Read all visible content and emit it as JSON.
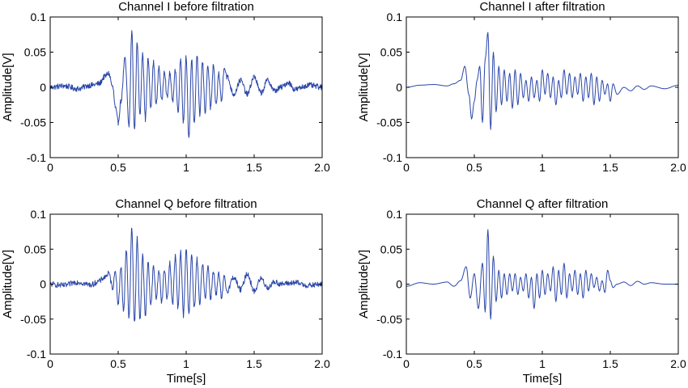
{
  "chart_data": [
    {
      "type": "line",
      "title": "Channel I before filtration",
      "xlabel": "",
      "ylabel": "Amplitude[V]",
      "xlim": [
        0,
        2.0
      ],
      "ylim": [
        -0.1,
        0.1
      ],
      "xticks": [
        "0",
        "0.5",
        "1",
        "1.5",
        "2.0"
      ],
      "yticks": [
        "0.1",
        "0.05",
        "0",
        "-0.05",
        "-0.1"
      ],
      "grid": false,
      "color": "#2a46a8",
      "series": [
        {
          "noise": 0.004,
          "x": [
            0,
            0.1,
            0.2,
            0.3,
            0.36,
            0.4,
            0.43,
            0.46,
            0.48,
            0.5,
            0.52,
            0.55,
            0.58,
            0.6,
            0.62,
            0.64,
            0.66,
            0.68,
            0.7,
            0.72,
            0.74,
            0.76,
            0.78,
            0.8,
            0.82,
            0.84,
            0.86,
            0.88,
            0.9,
            0.92,
            0.94,
            0.96,
            0.98,
            1.0,
            1.02,
            1.04,
            1.06,
            1.08,
            1.1,
            1.12,
            1.14,
            1.16,
            1.18,
            1.2,
            1.22,
            1.24,
            1.26,
            1.28,
            1.3,
            1.35,
            1.4,
            1.45,
            1.5,
            1.55,
            1.6,
            1.65,
            1.7,
            1.75,
            1.8,
            1.9,
            2.0
          ],
          "y": [
            0.0,
            0.002,
            -0.002,
            0.003,
            0.005,
            0.015,
            0.02,
            0.0,
            -0.03,
            -0.05,
            -0.02,
            0.04,
            -0.055,
            0.08,
            -0.06,
            0.065,
            -0.04,
            0.05,
            -0.045,
            0.04,
            -0.03,
            0.035,
            -0.025,
            0.03,
            -0.02,
            0.025,
            -0.015,
            0.02,
            -0.02,
            0.025,
            -0.035,
            0.04,
            -0.05,
            0.045,
            -0.075,
            0.04,
            -0.05,
            0.045,
            -0.04,
            0.035,
            -0.035,
            0.03,
            -0.03,
            0.03,
            -0.025,
            0.02,
            -0.02,
            0.03,
            0.015,
            -0.01,
            0.01,
            -0.01,
            0.015,
            -0.008,
            0.01,
            -0.005,
            0.0,
            0.007,
            -0.003,
            0.003,
            0.0
          ]
        }
      ]
    },
    {
      "type": "line",
      "title": "Channel I after filtration",
      "xlabel": "",
      "ylabel": "Amplitude[V]",
      "xlim": [
        0,
        2.0
      ],
      "ylim": [
        -0.1,
        0.1
      ],
      "xticks": [
        "0",
        "0.5",
        "1",
        "1.5",
        "2.0"
      ],
      "yticks": [
        "0.1",
        "0.05",
        "0",
        "-0.05",
        "-0.1"
      ],
      "grid": false,
      "color": "#2a46a8",
      "series": [
        {
          "noise": 0,
          "x": [
            0,
            0.1,
            0.2,
            0.3,
            0.35,
            0.4,
            0.43,
            0.46,
            0.48,
            0.5,
            0.52,
            0.54,
            0.56,
            0.58,
            0.6,
            0.62,
            0.64,
            0.66,
            0.68,
            0.7,
            0.72,
            0.74,
            0.76,
            0.78,
            0.8,
            0.82,
            0.84,
            0.86,
            0.88,
            0.9,
            0.92,
            0.94,
            0.96,
            0.98,
            1.0,
            1.02,
            1.04,
            1.06,
            1.08,
            1.1,
            1.12,
            1.14,
            1.16,
            1.18,
            1.2,
            1.22,
            1.24,
            1.26,
            1.28,
            1.3,
            1.32,
            1.34,
            1.36,
            1.38,
            1.4,
            1.42,
            1.44,
            1.46,
            1.48,
            1.5,
            1.52,
            1.55,
            1.6,
            1.65,
            1.7,
            1.75,
            1.8,
            1.9,
            2.0
          ],
          "y": [
            0.0,
            0.003,
            0.004,
            0.002,
            0.005,
            0.01,
            0.03,
            -0.01,
            -0.045,
            -0.02,
            0.01,
            0.03,
            -0.05,
            0.04,
            0.078,
            -0.06,
            0.05,
            -0.035,
            0.03,
            -0.025,
            0.025,
            -0.02,
            0.02,
            -0.03,
            0.025,
            -0.025,
            0.02,
            -0.015,
            0.01,
            -0.02,
            0.015,
            -0.015,
            0.01,
            -0.02,
            0.025,
            -0.01,
            0.02,
            -0.015,
            0.015,
            -0.025,
            0.01,
            -0.015,
            0.025,
            -0.01,
            0.02,
            -0.015,
            0.015,
            -0.01,
            0.02,
            -0.02,
            0.015,
            -0.015,
            0.02,
            -0.025,
            0.015,
            -0.02,
            0.01,
            -0.01,
            0.005,
            -0.02,
            0.005,
            -0.01,
            0.0,
            -0.005,
            0.002,
            -0.003,
            0.002,
            -0.002,
            0.003
          ]
        }
      ]
    },
    {
      "type": "line",
      "title": "Channel Q before filtration",
      "xlabel": "Time[s]",
      "ylabel": "Amplitude[V]",
      "xlim": [
        0,
        2.0
      ],
      "ylim": [
        -0.1,
        0.1
      ],
      "xticks": [
        "0",
        "0.5",
        "1",
        "1.5",
        "2.0"
      ],
      "yticks": [
        "0.1",
        "0.05",
        "0",
        "-0.05",
        "-0.1"
      ],
      "grid": false,
      "color": "#2a46a8",
      "series": [
        {
          "noise": 0.004,
          "x": [
            0,
            0.1,
            0.2,
            0.3,
            0.36,
            0.4,
            0.43,
            0.46,
            0.48,
            0.5,
            0.52,
            0.54,
            0.56,
            0.58,
            0.6,
            0.62,
            0.64,
            0.66,
            0.68,
            0.7,
            0.72,
            0.74,
            0.76,
            0.78,
            0.8,
            0.82,
            0.84,
            0.86,
            0.88,
            0.9,
            0.92,
            0.94,
            0.96,
            0.98,
            1.0,
            1.02,
            1.04,
            1.06,
            1.08,
            1.1,
            1.12,
            1.14,
            1.16,
            1.18,
            1.2,
            1.22,
            1.24,
            1.26,
            1.28,
            1.3,
            1.35,
            1.4,
            1.45,
            1.5,
            1.55,
            1.6,
            1.65,
            1.7,
            1.8,
            1.9,
            2.0
          ],
          "y": [
            0.0,
            -0.002,
            0.003,
            -0.001,
            0.004,
            0.01,
            0.015,
            -0.005,
            0.02,
            -0.03,
            0.025,
            -0.04,
            0.05,
            -0.05,
            0.08,
            -0.055,
            0.065,
            -0.05,
            0.04,
            -0.045,
            0.03,
            -0.03,
            0.025,
            -0.02,
            0.02,
            -0.025,
            0.02,
            -0.02,
            0.03,
            -0.03,
            0.04,
            -0.035,
            0.045,
            -0.045,
            0.05,
            -0.04,
            0.04,
            -0.035,
            0.035,
            -0.03,
            0.03,
            -0.02,
            0.025,
            -0.02,
            0.02,
            -0.015,
            0.015,
            -0.02,
            0.01,
            -0.01,
            0.01,
            -0.008,
            0.015,
            -0.01,
            0.008,
            -0.005,
            0.003,
            0.0,
            0.002,
            -0.002,
            0.0
          ]
        }
      ]
    },
    {
      "type": "line",
      "title": "Channel Q after filtration",
      "xlabel": "Time[s]",
      "ylabel": "Amplitude[V]",
      "xlim": [
        0,
        2.0
      ],
      "ylim": [
        -0.1,
        0.1
      ],
      "xticks": [
        "0",
        "0.5",
        "1",
        "1.5",
        "2.0"
      ],
      "yticks": [
        "0.1",
        "0.05",
        "0",
        "-0.05",
        "-0.1"
      ],
      "grid": false,
      "color": "#2a46a8",
      "series": [
        {
          "noise": 0,
          "x": [
            0,
            0.1,
            0.2,
            0.3,
            0.35,
            0.4,
            0.44,
            0.47,
            0.5,
            0.53,
            0.56,
            0.58,
            0.6,
            0.62,
            0.64,
            0.66,
            0.68,
            0.7,
            0.72,
            0.74,
            0.76,
            0.78,
            0.8,
            0.82,
            0.84,
            0.86,
            0.88,
            0.9,
            0.92,
            0.94,
            0.96,
            0.98,
            1.0,
            1.02,
            1.04,
            1.06,
            1.08,
            1.1,
            1.12,
            1.14,
            1.16,
            1.18,
            1.2,
            1.22,
            1.24,
            1.26,
            1.28,
            1.3,
            1.32,
            1.34,
            1.36,
            1.38,
            1.4,
            1.42,
            1.44,
            1.46,
            1.48,
            1.5,
            1.52,
            1.55,
            1.6,
            1.65,
            1.7,
            1.75,
            1.8,
            1.9,
            2.0
          ],
          "y": [
            -0.003,
            0.002,
            0.0,
            0.003,
            -0.003,
            0.005,
            0.025,
            -0.02,
            0.015,
            -0.035,
            0.03,
            -0.04,
            0.078,
            -0.05,
            0.04,
            -0.025,
            0.02,
            -0.02,
            0.015,
            -0.015,
            0.015,
            -0.01,
            0.015,
            -0.015,
            0.01,
            -0.01,
            0.015,
            -0.02,
            0.01,
            -0.035,
            0.015,
            -0.02,
            0.02,
            -0.015,
            0.015,
            -0.01,
            0.025,
            -0.025,
            0.02,
            -0.015,
            0.03,
            -0.02,
            0.015,
            -0.01,
            0.02,
            -0.015,
            0.015,
            -0.02,
            0.02,
            -0.01,
            0.015,
            -0.005,
            0.01,
            -0.01,
            0.005,
            -0.012,
            0.02,
            0.005,
            -0.005,
            0.0,
            0.003,
            -0.002,
            0.004,
            0.0,
            0.002,
            0.0,
            0.0
          ]
        }
      ]
    }
  ]
}
